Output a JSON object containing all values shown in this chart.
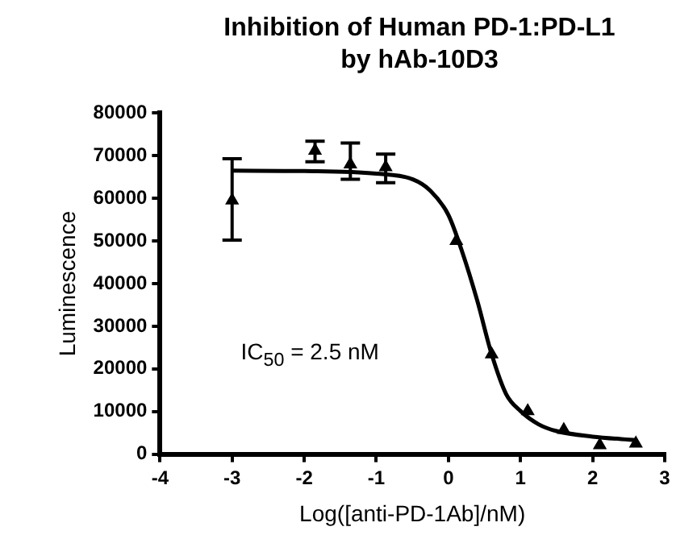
{
  "chart_data": {
    "type": "scatter",
    "title": "Inhibition of Human PD-1:PD-L1 by hAb-10D3",
    "xlabel": "Log([anti-PD-1Ab]/nM)",
    "ylabel": "Luminescence",
    "xlim": [
      -4,
      3
    ],
    "xticks": [
      -4,
      -3,
      -2,
      -1,
      0,
      1,
      2,
      3
    ],
    "ylim": [
      0,
      80000
    ],
    "yticks": [
      0,
      10000,
      20000,
      30000,
      40000,
      50000,
      60000,
      70000,
      80000
    ],
    "grid": false,
    "legend": false,
    "annotations": [
      "IC$_{50}$ = 2.5 nM"
    ],
    "series": [
      {
        "type": "scatter",
        "color": "#000000",
        "marker": "triangle",
        "x": [
          -3,
          -1.85,
          -1.36,
          -0.87,
          0.11,
          0.6,
          1.1,
          1.6,
          2.1,
          2.6
        ],
        "values": [
          59500,
          71200,
          68000,
          67300,
          50000,
          23400,
          10100,
          5700,
          2100,
          2500
        ],
        "errors": [
          [
            50200,
            69300
          ],
          [
            68600,
            73400
          ],
          [
            64500,
            73000
          ],
          [
            63700,
            70400
          ],
          null,
          null,
          null,
          null,
          null,
          null
        ]
      },
      {
        "type": "line",
        "color": "#000000",
        "marker": "none",
        "line_style": "solid",
        "x": [
          -3,
          -2,
          -1,
          -0.5,
          -0.25,
          0,
          0.2,
          0.4,
          0.6,
          0.8,
          1,
          1.25,
          1.5,
          2,
          2.6
        ],
        "values": [
          66500,
          66400,
          65800,
          64500,
          61800,
          56100,
          47000,
          36000,
          23400,
          14100,
          10100,
          7000,
          5400,
          4100,
          3300
        ]
      }
    ]
  }
}
